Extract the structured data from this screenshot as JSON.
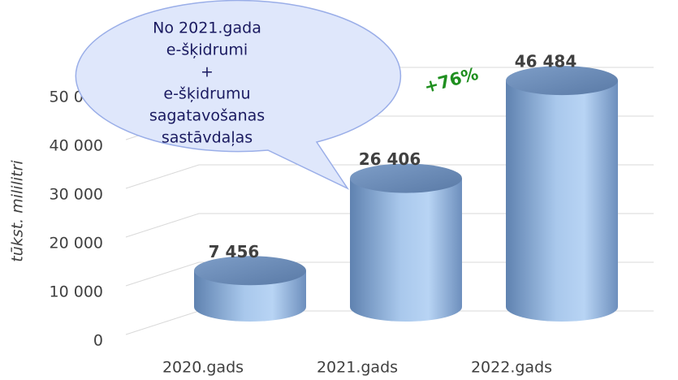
{
  "chart_data": {
    "type": "cylinder",
    "y_axis_label": "tūkst. mililitri",
    "categories": [
      "2020.gads",
      "2021.gads",
      "2022.gads"
    ],
    "values": [
      7456,
      26406,
      46484
    ],
    "value_labels": [
      "7 456",
      "26 406",
      "46 484"
    ],
    "color": "#8fb3df",
    "ylim": [
      0,
      50000
    ],
    "yticks": [
      0,
      {
        "value": 10000,
        "label": "10 000"
      },
      {
        "value": 20000,
        "label": "20 000"
      },
      {
        "value": 30000,
        "label": "30 000"
      },
      {
        "value": 40000,
        "label": "40 000"
      },
      {
        "value": 50000,
        "label": "50 000"
      }
    ],
    "grid": true,
    "callout": [
      "No 2021.gada",
      "e-šķidrumi",
      "+",
      "e-šķidrumu",
      "sagatavošanas",
      "sastāvdaļas"
    ],
    "annotation": "+76%"
  }
}
